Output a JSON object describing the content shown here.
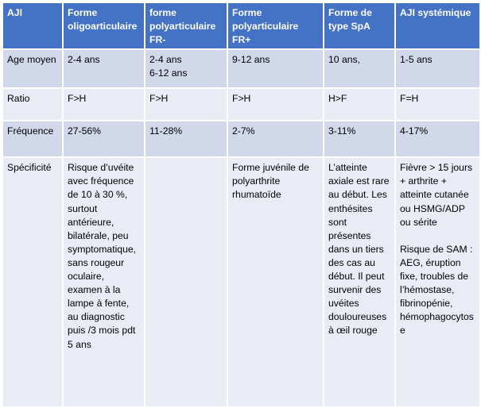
{
  "headers": [
    "AJI",
    "Forme oligoarticulaire",
    "forme polyarticulaire FR-",
    "Forme polyarticulaire FR+",
    "Forme de type SpA",
    "AJI systémique"
  ],
  "rows": [
    {
      "label": "Age moyen",
      "cells": [
        "2-4 ans",
        "2-4 ans\n6-12 ans",
        "9-12 ans",
        "10 ans,",
        "1-5 ans"
      ]
    },
    {
      "label": "Ratio",
      "cells": [
        "F>H",
        "F>H",
        "F>H",
        "H>F",
        "F=H"
      ]
    },
    {
      "label": "Fréquence",
      "cells": [
        "27-56%",
        "11-28%",
        "2-7%",
        "3-11%",
        "4-17%"
      ]
    },
    {
      "label": "Spécificité",
      "cells": [
        "Risque d’uvéite avec fréquence de 10 à 30 %, surtout antérieure, bilatérale, peu symptomatique, sans rougeur oculaire, examen à la lampe à fente, au diagnostic puis /3 mois pdt 5 ans",
        "",
        "Forme juvénile de polyarthrite rhumatoïde",
        "L’atteinte axiale est rare au début. Les enthésites sont présentes dans un tiers des cas au début. Il peut survenir des uvéites douloureuses à œil rouge",
        "Fièvre > 15 jours + arthrite + atteinte cutanée ou HSMG/ADP ou sérite\n\nRisque de SAM : AEG, éruption fixe, troubles de l’hémostase, fibrinopénie, hémophagocytose"
      ]
    }
  ]
}
